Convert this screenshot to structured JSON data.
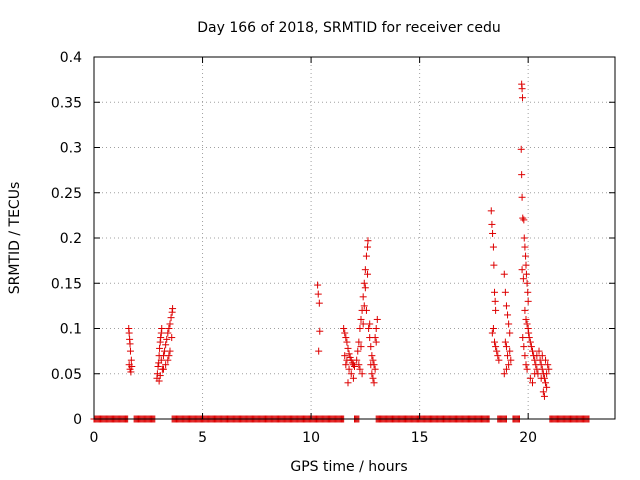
{
  "chart_data": {
    "type": "scatter",
    "title": "Day 166 of 2018, SRMTID for receiver cedu",
    "xlabel": "GPS time / hours",
    "ylabel": "SRMTID / TECUs",
    "xlim": [
      0,
      24
    ],
    "ylim": [
      0,
      0.4
    ],
    "xticks": [
      0,
      5,
      10,
      15,
      20
    ],
    "xtick_labels": [
      "0",
      "5",
      "10",
      "15",
      "20"
    ],
    "yticks": [
      0,
      0.05,
      0.1,
      0.15,
      0.2,
      0.25,
      0.3,
      0.35,
      0.4
    ],
    "ytick_labels": [
      "0",
      "0.05",
      "0.1",
      "0.15",
      "0.2",
      "0.25",
      "0.3",
      "0.35",
      "0.4"
    ],
    "grid": true,
    "marker": "+",
    "marker_color": "#dd0000",
    "series": [
      {
        "name": "SRMTID",
        "points": [
          [
            1.6,
            0.1
          ],
          [
            1.62,
            0.095
          ],
          [
            1.64,
            0.088
          ],
          [
            1.66,
            0.083
          ],
          [
            1.68,
            0.075
          ],
          [
            1.62,
            0.06
          ],
          [
            1.66,
            0.055
          ],
          [
            1.7,
            0.052
          ],
          [
            1.74,
            0.058
          ],
          [
            1.72,
            0.065
          ],
          [
            2.9,
            0.045
          ],
          [
            2.92,
            0.05
          ],
          [
            2.95,
            0.058
          ],
          [
            2.98,
            0.062
          ],
          [
            3.0,
            0.07
          ],
          [
            3.02,
            0.078
          ],
          [
            3.05,
            0.085
          ],
          [
            3.07,
            0.09
          ],
          [
            3.1,
            0.095
          ],
          [
            3.12,
            0.1
          ],
          [
            3.0,
            0.042
          ],
          [
            3.05,
            0.048
          ],
          [
            3.15,
            0.055
          ],
          [
            3.1,
            0.065
          ],
          [
            3.2,
            0.07
          ],
          [
            3.25,
            0.075
          ],
          [
            3.3,
            0.082
          ],
          [
            3.35,
            0.088
          ],
          [
            3.4,
            0.095
          ],
          [
            3.45,
            0.1
          ],
          [
            3.5,
            0.105
          ],
          [
            3.55,
            0.112
          ],
          [
            3.6,
            0.118
          ],
          [
            3.62,
            0.122
          ],
          [
            3.58,
            0.09
          ],
          [
            3.5,
            0.075
          ],
          [
            3.45,
            0.07
          ],
          [
            3.4,
            0.065
          ],
          [
            3.3,
            0.06
          ],
          [
            3.2,
            0.055
          ],
          [
            10.3,
            0.148
          ],
          [
            10.33,
            0.138
          ],
          [
            10.38,
            0.128
          ],
          [
            10.4,
            0.097
          ],
          [
            10.35,
            0.075
          ],
          [
            11.5,
            0.1
          ],
          [
            11.55,
            0.095
          ],
          [
            11.6,
            0.09
          ],
          [
            11.65,
            0.085
          ],
          [
            11.7,
            0.078
          ],
          [
            11.75,
            0.072
          ],
          [
            11.8,
            0.068
          ],
          [
            11.85,
            0.065
          ],
          [
            11.9,
            0.062
          ],
          [
            11.95,
            0.06
          ],
          [
            12.0,
            0.058
          ],
          [
            11.55,
            0.07
          ],
          [
            11.65,
            0.065
          ],
          [
            11.75,
            0.055
          ],
          [
            11.85,
            0.05
          ],
          [
            11.95,
            0.045
          ],
          [
            11.7,
            0.04
          ],
          [
            11.6,
            0.06
          ],
          [
            12.1,
            0.065
          ],
          [
            12.15,
            0.075
          ],
          [
            12.2,
            0.085
          ],
          [
            12.25,
            0.1
          ],
          [
            12.3,
            0.11
          ],
          [
            12.35,
            0.12
          ],
          [
            12.4,
            0.135
          ],
          [
            12.45,
            0.15
          ],
          [
            12.5,
            0.165
          ],
          [
            12.55,
            0.18
          ],
          [
            12.6,
            0.19
          ],
          [
            12.62,
            0.197
          ],
          [
            12.5,
            0.145
          ],
          [
            12.45,
            0.125
          ],
          [
            12.4,
            0.105
          ],
          [
            12.3,
            0.08
          ],
          [
            12.2,
            0.06
          ],
          [
            12.25,
            0.055
          ],
          [
            12.35,
            0.05
          ],
          [
            12.55,
            0.12
          ],
          [
            12.6,
            0.16
          ],
          [
            12.65,
            0.1
          ],
          [
            12.7,
            0.09
          ],
          [
            12.75,
            0.08
          ],
          [
            12.8,
            0.07
          ],
          [
            12.85,
            0.065
          ],
          [
            12.9,
            0.06
          ],
          [
            12.95,
            0.055
          ],
          [
            13.0,
            0.1
          ],
          [
            13.05,
            0.11
          ],
          [
            12.8,
            0.05
          ],
          [
            12.85,
            0.045
          ],
          [
            12.9,
            0.04
          ],
          [
            12.75,
            0.06
          ],
          [
            12.7,
            0.105
          ],
          [
            12.95,
            0.09
          ],
          [
            13.0,
            0.085
          ],
          [
            18.3,
            0.23
          ],
          [
            18.33,
            0.215
          ],
          [
            18.36,
            0.205
          ],
          [
            18.4,
            0.19
          ],
          [
            18.42,
            0.17
          ],
          [
            18.45,
            0.14
          ],
          [
            18.48,
            0.13
          ],
          [
            18.5,
            0.12
          ],
          [
            18.4,
            0.1
          ],
          [
            18.45,
            0.085
          ],
          [
            18.5,
            0.08
          ],
          [
            18.55,
            0.075
          ],
          [
            18.6,
            0.07
          ],
          [
            18.65,
            0.065
          ],
          [
            18.35,
            0.095
          ],
          [
            18.9,
            0.16
          ],
          [
            18.95,
            0.14
          ],
          [
            19.0,
            0.125
          ],
          [
            19.05,
            0.115
          ],
          [
            19.1,
            0.105
          ],
          [
            19.15,
            0.095
          ],
          [
            18.95,
            0.085
          ],
          [
            19.0,
            0.08
          ],
          [
            19.05,
            0.07
          ],
          [
            19.1,
            0.06
          ],
          [
            19.0,
            0.055
          ],
          [
            18.9,
            0.05
          ],
          [
            19.15,
            0.075
          ],
          [
            19.2,
            0.065
          ],
          [
            19.7,
            0.37
          ],
          [
            19.72,
            0.365
          ],
          [
            19.74,
            0.355
          ],
          [
            19.68,
            0.298
          ],
          [
            19.7,
            0.27
          ],
          [
            19.72,
            0.245
          ],
          [
            19.75,
            0.222
          ],
          [
            19.8,
            0.22
          ],
          [
            19.82,
            0.2
          ],
          [
            19.85,
            0.19
          ],
          [
            19.88,
            0.18
          ],
          [
            19.9,
            0.17
          ],
          [
            19.92,
            0.16
          ],
          [
            19.95,
            0.15
          ],
          [
            19.98,
            0.14
          ],
          [
            20.0,
            0.13
          ],
          [
            19.85,
            0.12
          ],
          [
            19.9,
            0.11
          ],
          [
            19.95,
            0.105
          ],
          [
            20.0,
            0.1
          ],
          [
            20.02,
            0.095
          ],
          [
            19.75,
            0.09
          ],
          [
            19.8,
            0.08
          ],
          [
            19.85,
            0.07
          ],
          [
            19.9,
            0.06
          ],
          [
            19.95,
            0.055
          ],
          [
            19.72,
            0.165
          ],
          [
            19.78,
            0.155
          ],
          [
            20.05,
            0.09
          ],
          [
            20.1,
            0.085
          ],
          [
            20.15,
            0.08
          ],
          [
            20.2,
            0.075
          ],
          [
            20.25,
            0.07
          ],
          [
            20.3,
            0.065
          ],
          [
            20.35,
            0.06
          ],
          [
            20.4,
            0.055
          ],
          [
            20.45,
            0.05
          ],
          [
            20.1,
            0.045
          ],
          [
            20.2,
            0.04
          ],
          [
            20.3,
            0.05
          ],
          [
            20.4,
            0.07
          ],
          [
            20.5,
            0.075
          ],
          [
            20.55,
            0.065
          ],
          [
            20.6,
            0.06
          ],
          [
            20.65,
            0.055
          ],
          [
            20.7,
            0.05
          ],
          [
            20.75,
            0.045
          ],
          [
            20.8,
            0.04
          ],
          [
            20.85,
            0.035
          ],
          [
            20.7,
            0.03
          ],
          [
            20.75,
            0.025
          ],
          [
            20.65,
            0.07
          ],
          [
            20.9,
            0.06
          ],
          [
            20.95,
            0.055
          ],
          [
            20.6,
            0.045
          ],
          [
            20.8,
            0.065
          ],
          [
            20.85,
            0.05
          ]
        ],
        "zero_ranges": [
          [
            0.0,
            1.55
          ],
          [
            1.85,
            2.8
          ],
          [
            3.6,
            11.5
          ],
          [
            12.0,
            12.2
          ],
          [
            13.0,
            18.2
          ],
          [
            18.6,
            19.0
          ],
          [
            19.3,
            19.6
          ],
          [
            21.0,
            22.8
          ]
        ]
      }
    ]
  }
}
